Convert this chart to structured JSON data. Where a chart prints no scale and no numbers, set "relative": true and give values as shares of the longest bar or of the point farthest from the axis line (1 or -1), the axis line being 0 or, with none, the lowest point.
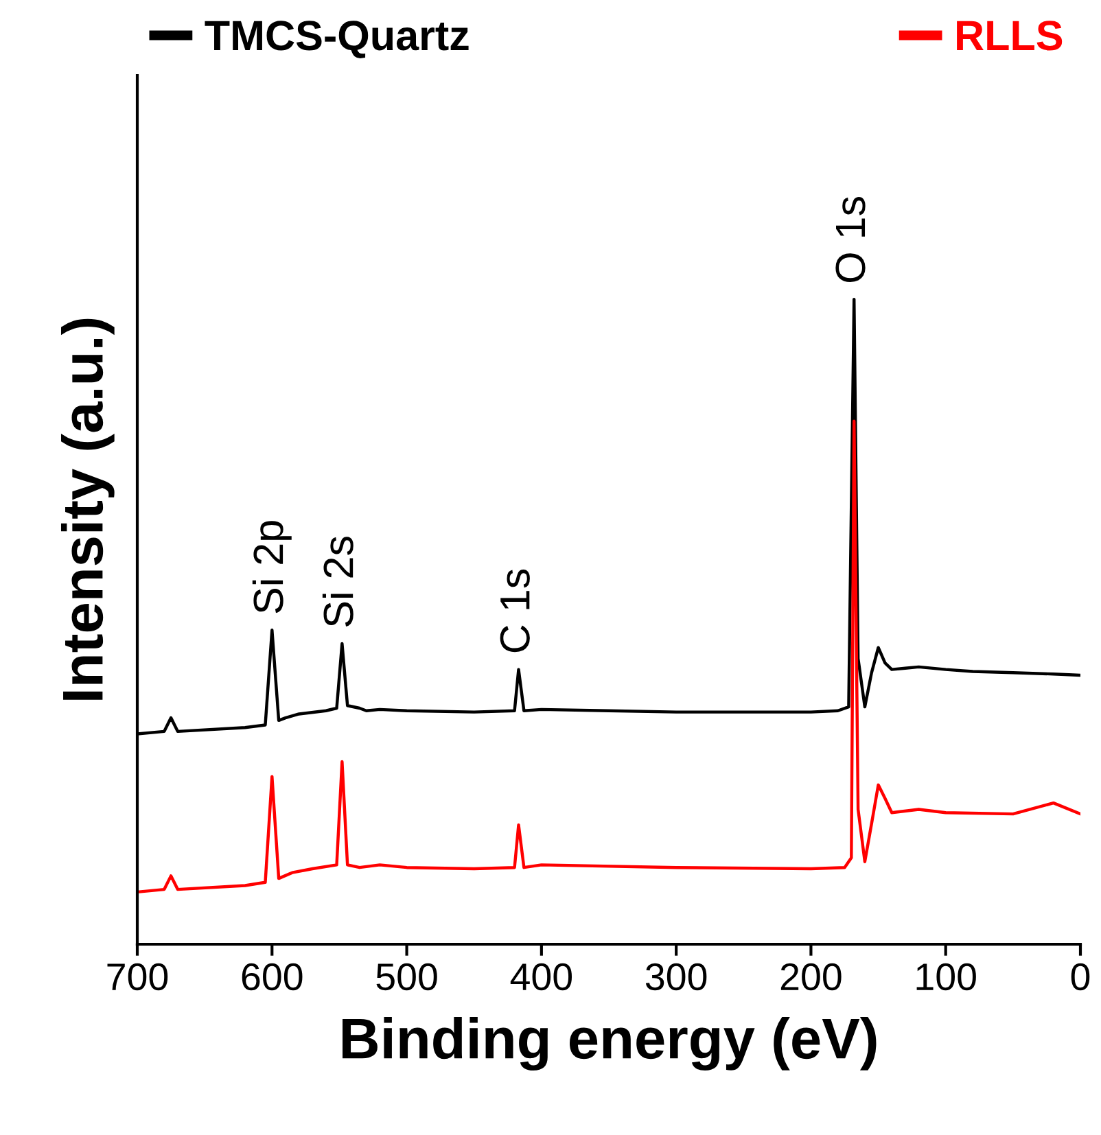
{
  "chart_data": {
    "type": "line",
    "relative": true,
    "xlabel": "Binding energy (eV)",
    "ylabel": "Intensity (a.u.)",
    "xlim": [
      700,
      0
    ],
    "xticks": [
      700,
      600,
      500,
      400,
      300,
      200,
      100,
      0
    ],
    "tick_labels": "x",
    "legend": "top",
    "grid": false,
    "annotations": [
      {
        "text": "Si 2p",
        "x": 600,
        "y": 0.487
      },
      {
        "text": "Si 2s",
        "x": 548,
        "y": 0.466
      },
      {
        "text": "C 1s",
        "x": 417,
        "y": 0.426
      },
      {
        "text": "O 1s",
        "x": 168,
        "y": 1.0
      }
    ],
    "series": [
      {
        "name": "TMCS-Quartz",
        "color": "#000000",
        "x": [
          700,
          680,
          675,
          670,
          620,
          605,
          600,
          595,
          590,
          580,
          560,
          552,
          548,
          544,
          535,
          530,
          520,
          500,
          450,
          420,
          417,
          413,
          400,
          350,
          300,
          250,
          200,
          180,
          172,
          168,
          165,
          160,
          155,
          150,
          145,
          140,
          130,
          120,
          100,
          80,
          50,
          20,
          0
        ],
        "values": [
          0.326,
          0.33,
          0.351,
          0.33,
          0.336,
          0.34,
          0.487,
          0.347,
          0.351,
          0.357,
          0.362,
          0.366,
          0.466,
          0.37,
          0.366,
          0.362,
          0.364,
          0.362,
          0.36,
          0.362,
          0.426,
          0.362,
          0.364,
          0.362,
          0.36,
          0.36,
          0.36,
          0.362,
          0.368,
          1.0,
          0.443,
          0.368,
          0.421,
          0.46,
          0.436,
          0.426,
          0.428,
          0.43,
          0.426,
          0.423,
          0.421,
          0.419,
          0.417
        ]
      },
      {
        "name": "RLLS",
        "color": "#ff0000",
        "x": [
          700,
          680,
          675,
          670,
          620,
          605,
          600,
          595,
          585,
          570,
          552,
          548,
          544,
          535,
          520,
          500,
          450,
          420,
          417,
          413,
          400,
          300,
          200,
          175,
          170,
          168,
          165,
          160,
          155,
          150,
          145,
          140,
          120,
          100,
          50,
          20,
          0
        ],
        "values": [
          0.081,
          0.085,
          0.106,
          0.085,
          0.091,
          0.096,
          0.26,
          0.102,
          0.111,
          0.117,
          0.123,
          0.283,
          0.123,
          0.119,
          0.123,
          0.119,
          0.117,
          0.119,
          0.185,
          0.119,
          0.123,
          0.119,
          0.117,
          0.119,
          0.134,
          0.811,
          0.209,
          0.128,
          0.187,
          0.247,
          0.226,
          0.204,
          0.209,
          0.204,
          0.202,
          0.219,
          0.202
        ]
      }
    ]
  }
}
